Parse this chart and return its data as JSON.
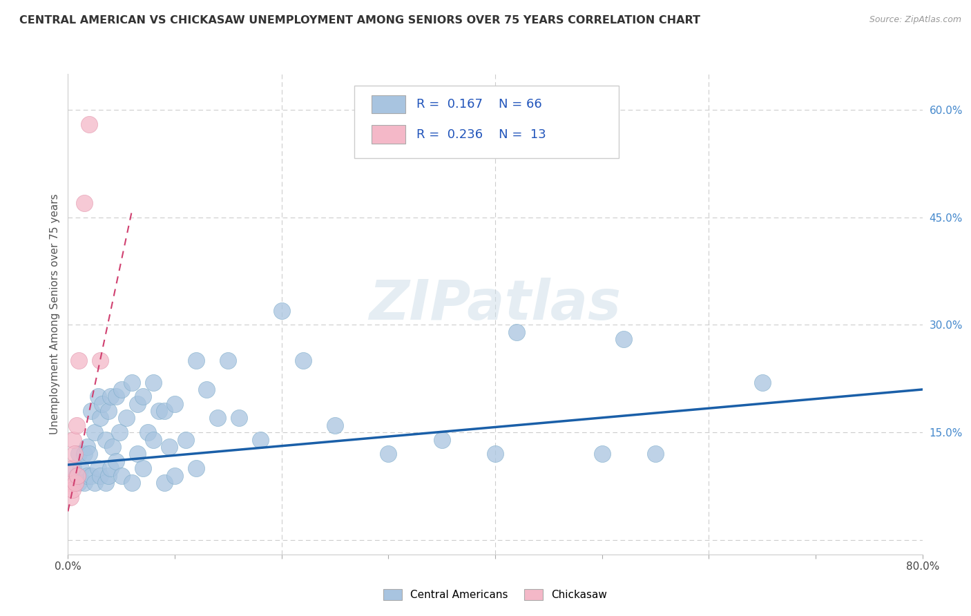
{
  "title": "CENTRAL AMERICAN VS CHICKASAW UNEMPLOYMENT AMONG SENIORS OVER 75 YEARS CORRELATION CHART",
  "source": "Source: ZipAtlas.com",
  "ylabel": "Unemployment Among Seniors over 75 years",
  "xlim": [
    0.0,
    0.8
  ],
  "ylim": [
    -0.02,
    0.65
  ],
  "blue_color": "#a8c4e0",
  "blue_edge_color": "#7aaac8",
  "blue_line_color": "#1a5fa8",
  "pink_color": "#f4b8c8",
  "pink_edge_color": "#e090a8",
  "pink_line_color": "#d04070",
  "watermark": "ZIPatlas",
  "blue_scatter_x": [
    0.005,
    0.008,
    0.01,
    0.01,
    0.012,
    0.015,
    0.015,
    0.018,
    0.018,
    0.02,
    0.022,
    0.022,
    0.025,
    0.025,
    0.028,
    0.028,
    0.03,
    0.03,
    0.032,
    0.035,
    0.035,
    0.038,
    0.038,
    0.04,
    0.04,
    0.042,
    0.045,
    0.045,
    0.048,
    0.05,
    0.05,
    0.055,
    0.06,
    0.06,
    0.065,
    0.065,
    0.07,
    0.07,
    0.075,
    0.08,
    0.08,
    0.085,
    0.09,
    0.09,
    0.095,
    0.1,
    0.1,
    0.11,
    0.12,
    0.12,
    0.13,
    0.14,
    0.15,
    0.16,
    0.18,
    0.2,
    0.22,
    0.25,
    0.3,
    0.35,
    0.4,
    0.42,
    0.5,
    0.52,
    0.55,
    0.65
  ],
  "blue_scatter_y": [
    0.1,
    0.09,
    0.12,
    0.08,
    0.1,
    0.12,
    0.08,
    0.13,
    0.09,
    0.12,
    0.18,
    0.09,
    0.15,
    0.08,
    0.2,
    0.1,
    0.17,
    0.09,
    0.19,
    0.14,
    0.08,
    0.18,
    0.09,
    0.2,
    0.1,
    0.13,
    0.2,
    0.11,
    0.15,
    0.21,
    0.09,
    0.17,
    0.22,
    0.08,
    0.19,
    0.12,
    0.2,
    0.1,
    0.15,
    0.22,
    0.14,
    0.18,
    0.18,
    0.08,
    0.13,
    0.19,
    0.09,
    0.14,
    0.25,
    0.1,
    0.21,
    0.17,
    0.25,
    0.17,
    0.14,
    0.32,
    0.25,
    0.16,
    0.12,
    0.14,
    0.12,
    0.29,
    0.12,
    0.28,
    0.12,
    0.22
  ],
  "pink_scatter_x": [
    0.001,
    0.002,
    0.003,
    0.004,
    0.005,
    0.006,
    0.007,
    0.008,
    0.009,
    0.01,
    0.015,
    0.02,
    0.03
  ],
  "pink_scatter_y": [
    0.08,
    0.06,
    0.1,
    0.07,
    0.14,
    0.12,
    0.08,
    0.16,
    0.09,
    0.25,
    0.47,
    0.58,
    0.25
  ],
  "blue_trend_x": [
    0.0,
    0.8
  ],
  "blue_trend_y": [
    0.105,
    0.21
  ],
  "pink_trend_x": [
    0.0,
    0.06
  ],
  "pink_trend_y": [
    0.04,
    0.46
  ]
}
